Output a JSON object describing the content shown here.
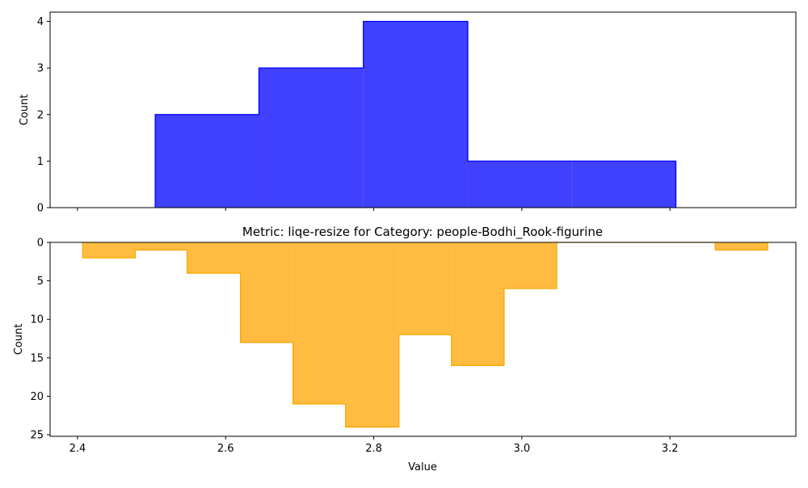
{
  "chart_data": [
    {
      "type": "bar",
      "subtype": "histogram-step-filled",
      "title": "",
      "xlabel": "",
      "ylabel": "Count",
      "xlim": [
        2.363,
        3.37
      ],
      "ylim": [
        0,
        4.2
      ],
      "yticks": [
        0,
        1,
        2,
        3,
        4
      ],
      "xticks": [
        2.4,
        2.6,
        2.8,
        3.0,
        3.2
      ],
      "show_xtick_labels": false,
      "bin_edges": [
        2.505,
        2.645,
        2.786,
        2.927,
        3.067,
        3.208
      ],
      "values": [
        2,
        3,
        4,
        1,
        1
      ],
      "color": "#0000ff",
      "fill_opacity": 0.75,
      "grid": false
    },
    {
      "type": "bar",
      "subtype": "histogram-step-filled-inverted",
      "title": "Metric: liqe-resize for Category: people-Bodhi_Rook-figurine",
      "xlabel": "Value",
      "ylabel": "Count",
      "xlim": [
        2.363,
        3.37
      ],
      "ylim": [
        25.2,
        0
      ],
      "y_inverted": true,
      "yticks": [
        0,
        5,
        10,
        15,
        20,
        25
      ],
      "xticks": [
        2.4,
        2.6,
        2.8,
        3.0,
        3.2
      ],
      "xtick_labels": [
        "2.4",
        "2.6",
        "2.8",
        "3.0",
        "3.2"
      ],
      "bin_edges": [
        2.407,
        2.478,
        2.548,
        2.62,
        2.691,
        2.762,
        2.834,
        2.905,
        2.976,
        3.047,
        3.118,
        3.19,
        3.261,
        3.332
      ],
      "values": [
        2,
        1,
        4,
        13,
        21,
        24,
        12,
        16,
        6,
        0,
        0,
        0,
        1
      ],
      "color": "#ffa500",
      "fill_opacity": 0.75,
      "grid": false
    }
  ]
}
